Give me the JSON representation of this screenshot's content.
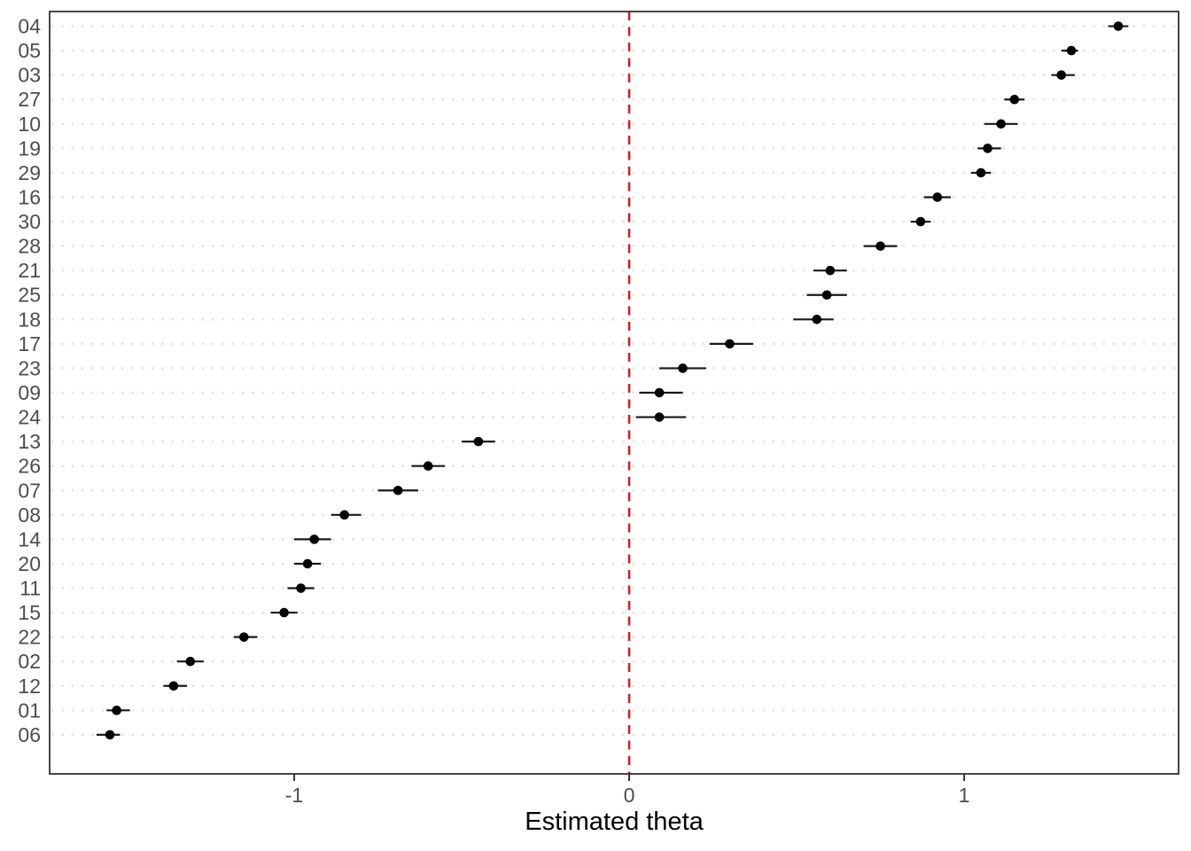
{
  "chart_data": {
    "type": "scatter",
    "subtype": "dot-interval-caterpillar",
    "orientation": "horizontal",
    "title": "",
    "xlabel": "Estimated theta",
    "ylabel": "",
    "legend": "none",
    "grid": "dotted horizontal line per category, no vertical grid",
    "xlim": [
      -1.73,
      1.64
    ],
    "x_ticks": [
      {
        "value": -1,
        "label": "-1"
      },
      {
        "value": 0,
        "label": "0"
      },
      {
        "value": 1,
        "label": "1"
      }
    ],
    "reference_line": {
      "x": 0,
      "style": "dashed",
      "color": "#CC2222"
    },
    "items": [
      {
        "label": "04",
        "est": 1.46,
        "lo": 1.43,
        "hi": 1.49
      },
      {
        "label": "05",
        "est": 1.32,
        "lo": 1.29,
        "hi": 1.34
      },
      {
        "label": "03",
        "est": 1.29,
        "lo": 1.26,
        "hi": 1.33
      },
      {
        "label": "27",
        "est": 1.15,
        "lo": 1.12,
        "hi": 1.18
      },
      {
        "label": "10",
        "est": 1.11,
        "lo": 1.06,
        "hi": 1.16
      },
      {
        "label": "19",
        "est": 1.07,
        "lo": 1.04,
        "hi": 1.11
      },
      {
        "label": "29",
        "est": 1.05,
        "lo": 1.02,
        "hi": 1.08
      },
      {
        "label": "16",
        "est": 0.92,
        "lo": 0.88,
        "hi": 0.96
      },
      {
        "label": "30",
        "est": 0.87,
        "lo": 0.84,
        "hi": 0.9
      },
      {
        "label": "28",
        "est": 0.75,
        "lo": 0.7,
        "hi": 0.8
      },
      {
        "label": "21",
        "est": 0.6,
        "lo": 0.55,
        "hi": 0.65
      },
      {
        "label": "25",
        "est": 0.59,
        "lo": 0.53,
        "hi": 0.65
      },
      {
        "label": "18",
        "est": 0.56,
        "lo": 0.49,
        "hi": 0.61
      },
      {
        "label": "17",
        "est": 0.3,
        "lo": 0.24,
        "hi": 0.37
      },
      {
        "label": "23",
        "est": 0.16,
        "lo": 0.09,
        "hi": 0.23
      },
      {
        "label": "09",
        "est": 0.09,
        "lo": 0.03,
        "hi": 0.16
      },
      {
        "label": "24",
        "est": 0.09,
        "lo": 0.02,
        "hi": 0.17
      },
      {
        "label": "13",
        "est": -0.45,
        "lo": -0.5,
        "hi": -0.4
      },
      {
        "label": "26",
        "est": -0.6,
        "lo": -0.65,
        "hi": -0.55
      },
      {
        "label": "07",
        "est": -0.69,
        "lo": -0.75,
        "hi": -0.63
      },
      {
        "label": "08",
        "est": -0.85,
        "lo": -0.89,
        "hi": -0.8
      },
      {
        "label": "14",
        "est": -0.94,
        "lo": -1.0,
        "hi": -0.89
      },
      {
        "label": "20",
        "est": -0.96,
        "lo": -1.0,
        "hi": -0.92
      },
      {
        "label": "11",
        "est": -0.98,
        "lo": -1.02,
        "hi": -0.94
      },
      {
        "label": "15",
        "est": -1.03,
        "lo": -1.07,
        "hi": -0.99
      },
      {
        "label": "22",
        "est": -1.15,
        "lo": -1.18,
        "hi": -1.11
      },
      {
        "label": "02",
        "est": -1.31,
        "lo": -1.35,
        "hi": -1.27
      },
      {
        "label": "12",
        "est": -1.36,
        "lo": -1.39,
        "hi": -1.32
      },
      {
        "label": "01",
        "est": -1.53,
        "lo": -1.56,
        "hi": -1.49
      },
      {
        "label": "06",
        "est": -1.55,
        "lo": -1.59,
        "hi": -1.52
      }
    ],
    "colors": {
      "point": "#000000",
      "interval": "#1a1a1a",
      "reference_line": "#CC2222",
      "grid_dot": "#E2E2E2",
      "panel_border": "#333333",
      "tick_label": "#4d4d4d",
      "axis_title": "#000000",
      "background": "#ffffff"
    }
  }
}
